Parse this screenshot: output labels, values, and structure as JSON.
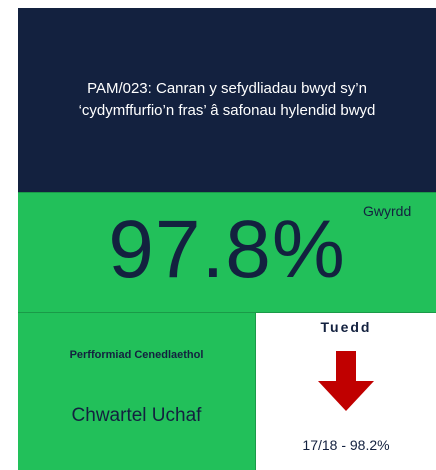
{
  "header": {
    "title_lines": [
      "PAM/023: Canran y sefydliadau bwyd sy’n",
      "‘cydymffurfio’n fras’ â safonau hylendid bwyd"
    ]
  },
  "main": {
    "value": "97.8%",
    "status": "Gwyrdd"
  },
  "national": {
    "label": "Perfformiad Cenedlaethol",
    "quartile": "Chwartel Uchaf"
  },
  "trend": {
    "label": "Tuedd",
    "previous": "17/18 - 98.2%"
  }
}
